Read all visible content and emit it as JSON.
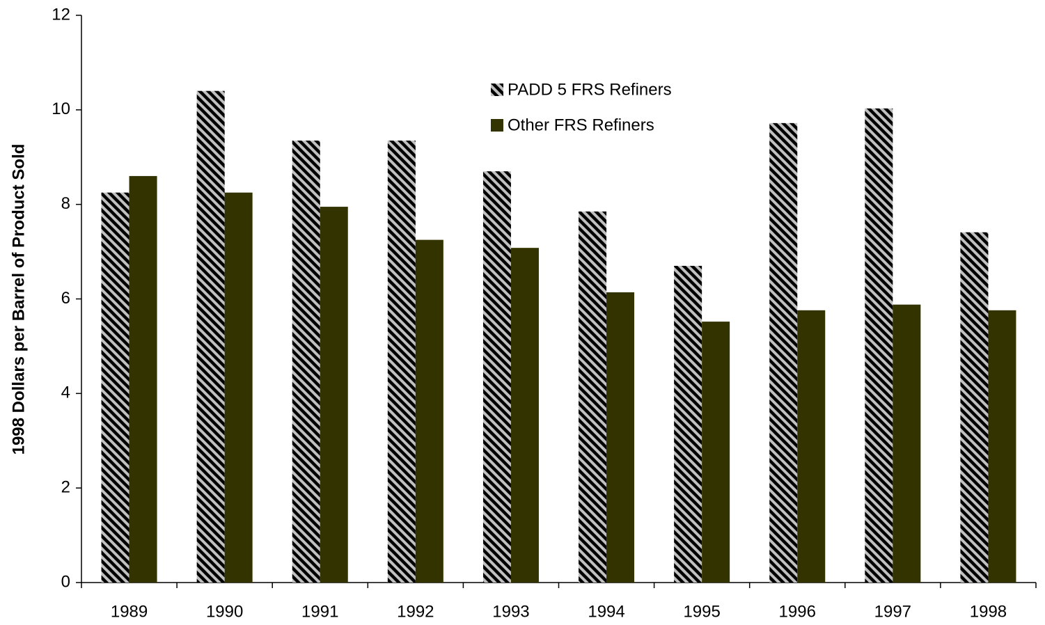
{
  "chart_data": {
    "type": "bar",
    "ylabel": "1998 Dollars per Barrel of Product Sold",
    "categories": [
      "1989",
      "1990",
      "1991",
      "1992",
      "1993",
      "1994",
      "1995",
      "1996",
      "1997",
      "1998"
    ],
    "series": [
      {
        "name": "PADD 5 FRS Refiners",
        "color": "#c0c0c0",
        "hatch": true,
        "hatch_color": "#000000",
        "values": [
          8.25,
          10.4,
          9.35,
          9.35,
          8.7,
          7.85,
          6.7,
          9.72,
          10.03,
          7.41
        ]
      },
      {
        "name": "Other FRS Refiners",
        "color": "#333300",
        "hatch": false,
        "values": [
          8.6,
          8.25,
          7.95,
          7.25,
          7.08,
          6.14,
          5.52,
          5.76,
          5.88,
          5.76
        ]
      }
    ],
    "ylim": [
      0,
      12
    ],
    "yticks": [
      0,
      2,
      4,
      6,
      8,
      10,
      12
    ],
    "grid": false
  }
}
